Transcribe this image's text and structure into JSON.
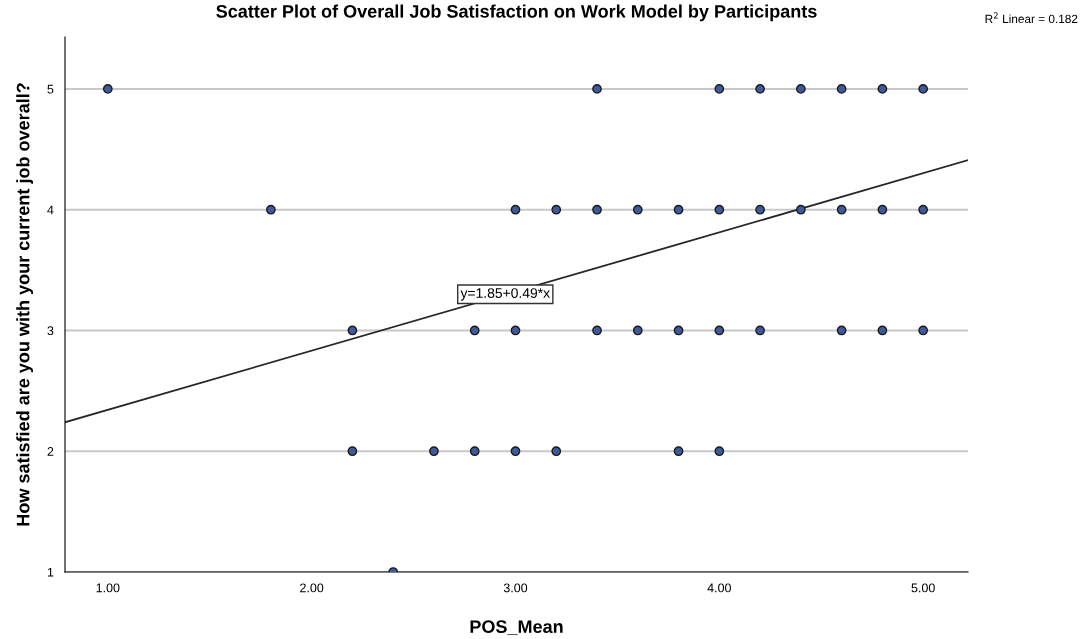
{
  "chart_data": {
    "type": "scatter",
    "title": "Scatter Plot of Overall Job Satisfaction on Work Model by Participants",
    "xlabel": "POS_Mean",
    "ylabel": "How satisfied are you with your current job overall?",
    "xlim": [
      0.79,
      5.22
    ],
    "ylim": [
      1,
      5.43
    ],
    "xticks": [
      {
        "value": 1,
        "label": "1.00"
      },
      {
        "value": 2,
        "label": "2.00"
      },
      {
        "value": 3,
        "label": "3.00"
      },
      {
        "value": 4,
        "label": "4.00"
      },
      {
        "value": 5,
        "label": "5.00"
      }
    ],
    "yticks": [
      1,
      2,
      3,
      4,
      5
    ],
    "grid": "y",
    "series": [
      {
        "marker": "circle",
        "color": "#3f5a9c",
        "x": [
          1.0,
          3.4,
          4.0,
          4.2,
          4.4,
          4.6,
          4.8,
          5.0,
          1.8,
          3.0,
          3.2,
          3.4,
          3.6,
          3.8,
          4.0,
          4.2,
          4.4,
          4.6,
          4.8,
          5.0,
          2.2,
          2.8,
          3.0,
          3.4,
          3.6,
          3.8,
          4.0,
          4.2,
          4.6,
          4.8,
          5.0,
          2.2,
          2.6,
          2.8,
          3.0,
          3.2,
          3.8,
          4.0,
          2.4
        ],
        "values": [
          5,
          5,
          5,
          5,
          5,
          5,
          5,
          5,
          4,
          4,
          4,
          4,
          4,
          4,
          4,
          4,
          4,
          4,
          4,
          4,
          3,
          3,
          3,
          3,
          3,
          3,
          3,
          3,
          3,
          3,
          3,
          2,
          2,
          2,
          2,
          2,
          2,
          2,
          1
        ]
      },
      {
        "type": "line",
        "marker": "none",
        "color": "#262626",
        "x": [
          0.79,
          5.22
        ],
        "values": [
          2.24,
          4.41
        ]
      }
    ],
    "annotations": [
      {
        "text": "y=1.85+0.49*x",
        "x": 2.95,
        "y": 3.3
      },
      "R$^{2}$ Linear = 0.182"
    ]
  }
}
